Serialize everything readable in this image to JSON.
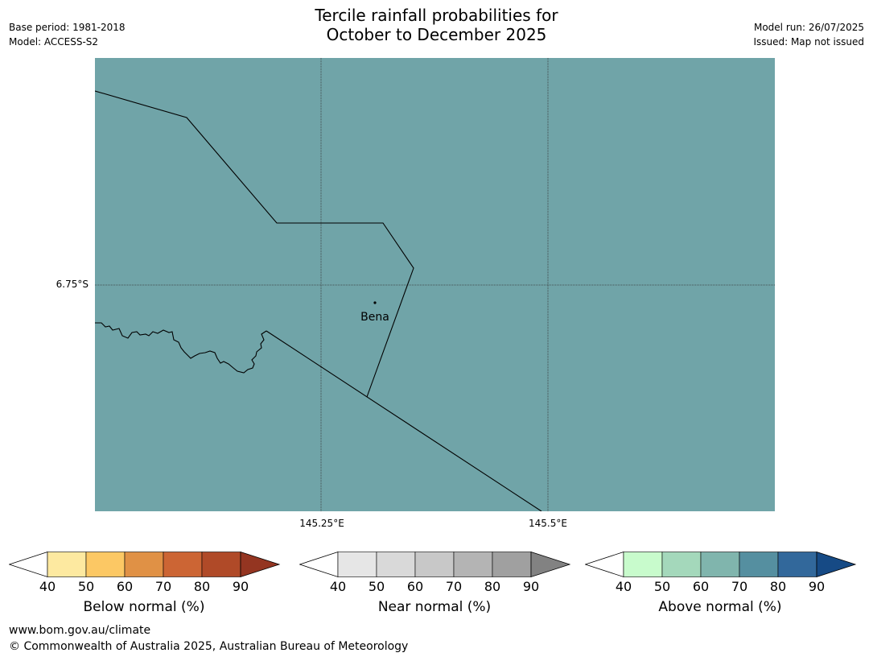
{
  "header": {
    "title_line1": "Tercile rainfall probabilities for",
    "title_line2": "October to December 2025",
    "base_period": "Base period: 1981-2018",
    "model": "Model: ACCESS-S2",
    "model_run": "Model run: 26/07/2025",
    "issued": "Issued: Map not issued"
  },
  "map": {
    "fill_color": "#70a4a8",
    "lat_label": "6.75°S",
    "lon_labels": [
      "145.25°E",
      "145.5°E"
    ],
    "place": {
      "name": "Bena",
      "marker": "dot"
    }
  },
  "colorbars": [
    {
      "label": "Below normal (%)",
      "ticks": [
        "40",
        "50",
        "60",
        "70",
        "80",
        "90"
      ],
      "colors": [
        "#ffffff",
        "#fde9a0",
        "#fcc864",
        "#e09145",
        "#cc6534",
        "#b04a28",
        "#943521"
      ]
    },
    {
      "label": "Near normal (%)",
      "ticks": [
        "40",
        "50",
        "60",
        "70",
        "80",
        "90"
      ],
      "colors": [
        "#ffffff",
        "#e6e6e6",
        "#d9d9d9",
        "#c8c8c8",
        "#b4b4b4",
        "#a0a0a0",
        "#828282"
      ]
    },
    {
      "label": "Above normal (%)",
      "ticks": [
        "40",
        "50",
        "60",
        "70",
        "80",
        "90"
      ],
      "colors": [
        "#ffffff",
        "#c8fbcc",
        "#a4d8bb",
        "#80b5ad",
        "#558fa0",
        "#32689b",
        "#164a85"
      ]
    }
  ],
  "footer": {
    "url": "www.bom.gov.au/climate",
    "copyright": "© Commonwealth of Australia 2025, Australian Bureau of Meteorology"
  }
}
